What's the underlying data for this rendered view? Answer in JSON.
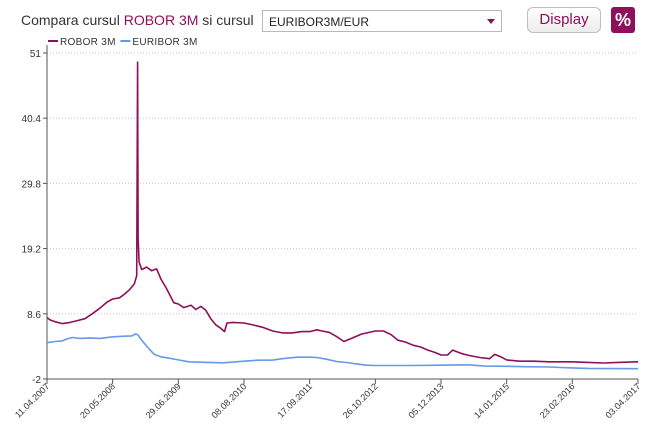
{
  "header": {
    "title_part1": "Compara cursul",
    "title_accent": "ROBOR 3M",
    "title_part2": "si cursul",
    "select_value": "EURIBOR3M/EUR",
    "display_label": "Display",
    "percent_label": "%"
  },
  "colors": {
    "robor": "#8e0f5a",
    "euribor": "#6699e8",
    "accent": "#8e0f5a"
  },
  "chart_data": {
    "type": "line",
    "title": "",
    "ylim": [
      -2,
      51
    ],
    "y_ticks": [
      -2,
      8.6,
      19.2,
      29.8,
      40.4,
      51
    ],
    "y_tick_labels": [
      "-2",
      "8.6",
      "19.2",
      "29.8",
      "40.4",
      "51"
    ],
    "x_ticks": [
      "11.04.2007",
      "20.05.2008",
      "29.06.2009",
      "08.08.2010",
      "17.09.2011",
      "26.10.2012",
      "05.12.2013",
      "14.01.2015",
      "23.02.2016",
      "03.04.2017"
    ],
    "legend_position": "top-left",
    "series": [
      {
        "name": "ROBOR 3M",
        "color": "#8e0f5a",
        "points": [
          [
            "2007-04-11",
            8.0
          ],
          [
            "2007-05-01",
            7.6
          ],
          [
            "2007-06-01",
            7.3
          ],
          [
            "2007-07-15",
            7.0
          ],
          [
            "2007-09-01",
            7.2
          ],
          [
            "2007-10-15",
            7.5
          ],
          [
            "2007-12-01",
            7.8
          ],
          [
            "2008-01-15",
            8.6
          ],
          [
            "2008-03-01",
            9.5
          ],
          [
            "2008-04-15",
            10.5
          ],
          [
            "2008-05-20",
            11.0
          ],
          [
            "2008-07-01",
            11.2
          ],
          [
            "2008-08-01",
            11.8
          ],
          [
            "2008-09-01",
            12.5
          ],
          [
            "2008-10-01",
            13.5
          ],
          [
            "2008-10-15",
            14.8
          ],
          [
            "2008-10-21",
            49.5
          ],
          [
            "2008-10-24",
            21.0
          ],
          [
            "2008-10-30",
            17.0
          ],
          [
            "2008-11-15",
            15.8
          ],
          [
            "2008-12-15",
            16.2
          ],
          [
            "2009-01-15",
            15.6
          ],
          [
            "2009-02-15",
            15.9
          ],
          [
            "2009-03-15",
            14.2
          ],
          [
            "2009-04-15",
            12.8
          ],
          [
            "2009-05-15",
            11.3
          ],
          [
            "2009-06-01",
            10.4
          ],
          [
            "2009-06-29",
            10.2
          ],
          [
            "2009-08-01",
            9.6
          ],
          [
            "2009-09-15",
            10.0
          ],
          [
            "2009-10-15",
            9.3
          ],
          [
            "2009-11-15",
            9.8
          ],
          [
            "2009-12-15",
            9.2
          ],
          [
            "2010-01-15",
            7.8
          ],
          [
            "2010-02-15",
            6.8
          ],
          [
            "2010-03-15",
            6.3
          ],
          [
            "2010-04-10",
            5.7
          ],
          [
            "2010-04-25",
            7.1
          ],
          [
            "2010-06-01",
            7.2
          ],
          [
            "2010-08-08",
            7.1
          ],
          [
            "2010-10-01",
            6.8
          ],
          [
            "2010-12-01",
            6.4
          ],
          [
            "2011-02-01",
            5.8
          ],
          [
            "2011-04-01",
            5.5
          ],
          [
            "2011-06-01",
            5.5
          ],
          [
            "2011-08-01",
            5.7
          ],
          [
            "2011-09-17",
            5.7
          ],
          [
            "2011-11-01",
            6.0
          ],
          [
            "2011-12-01",
            5.8
          ],
          [
            "2012-01-15",
            5.6
          ],
          [
            "2012-03-01",
            4.9
          ],
          [
            "2012-04-15",
            4.1
          ],
          [
            "2012-06-01",
            4.6
          ],
          [
            "2012-08-01",
            5.3
          ],
          [
            "2012-10-26",
            5.8
          ],
          [
            "2012-12-15",
            5.8
          ],
          [
            "2013-02-01",
            5.2
          ],
          [
            "2013-03-15",
            4.3
          ],
          [
            "2013-05-01",
            4.0
          ],
          [
            "2013-06-15",
            3.5
          ],
          [
            "2013-08-01",
            3.2
          ],
          [
            "2013-09-15",
            2.7
          ],
          [
            "2013-11-01",
            2.3
          ],
          [
            "2013-12-05",
            1.9
          ],
          [
            "2014-01-15",
            1.9
          ],
          [
            "2014-02-15",
            2.7
          ],
          [
            "2014-03-15",
            2.4
          ],
          [
            "2014-04-15",
            2.1
          ],
          [
            "2014-06-01",
            1.8
          ],
          [
            "2014-08-01",
            1.5
          ],
          [
            "2014-10-01",
            1.3
          ],
          [
            "2014-11-01",
            2.0
          ],
          [
            "2014-12-01",
            1.7
          ],
          [
            "2015-01-14",
            1.1
          ],
          [
            "2015-04-01",
            0.9
          ],
          [
            "2015-07-01",
            0.9
          ],
          [
            "2015-10-01",
            0.8
          ],
          [
            "2016-01-01",
            0.8
          ],
          [
            "2016-02-23",
            0.8
          ],
          [
            "2016-06-01",
            0.7
          ],
          [
            "2016-09-01",
            0.6
          ],
          [
            "2016-12-01",
            0.7
          ],
          [
            "2017-04-03",
            0.8
          ]
        ]
      },
      {
        "name": "EURIBOR 3M",
        "color": "#6699e8",
        "points": [
          [
            "2007-04-11",
            3.9
          ],
          [
            "2007-06-01",
            4.1
          ],
          [
            "2007-07-15",
            4.2
          ],
          [
            "2007-08-10",
            4.5
          ],
          [
            "2007-09-15",
            4.75
          ],
          [
            "2007-11-01",
            4.6
          ],
          [
            "2008-01-01",
            4.68
          ],
          [
            "2008-03-01",
            4.6
          ],
          [
            "2008-05-20",
            4.86
          ],
          [
            "2008-07-15",
            4.95
          ],
          [
            "2008-09-15",
            5.0
          ],
          [
            "2008-10-09",
            5.35
          ],
          [
            "2008-10-25",
            5.1
          ],
          [
            "2008-11-15",
            4.3
          ],
          [
            "2008-12-01",
            3.8
          ],
          [
            "2008-12-31",
            2.9
          ],
          [
            "2009-02-01",
            2.0
          ],
          [
            "2009-03-15",
            1.6
          ],
          [
            "2009-05-01",
            1.4
          ],
          [
            "2009-06-29",
            1.1
          ],
          [
            "2009-09-01",
            0.8
          ],
          [
            "2010-01-01",
            0.7
          ],
          [
            "2010-04-01",
            0.64
          ],
          [
            "2010-06-01",
            0.75
          ],
          [
            "2010-08-08",
            0.9
          ],
          [
            "2010-11-01",
            1.05
          ],
          [
            "2011-02-01",
            1.08
          ],
          [
            "2011-04-01",
            1.3
          ],
          [
            "2011-07-01",
            1.55
          ],
          [
            "2011-09-17",
            1.54
          ],
          [
            "2011-11-01",
            1.5
          ],
          [
            "2012-01-01",
            1.2
          ],
          [
            "2012-03-01",
            0.85
          ],
          [
            "2012-05-01",
            0.68
          ],
          [
            "2012-07-15",
            0.4
          ],
          [
            "2012-09-01",
            0.25
          ],
          [
            "2012-10-26",
            0.2
          ],
          [
            "2013-01-01",
            0.19
          ],
          [
            "2013-06-01",
            0.2
          ],
          [
            "2013-12-05",
            0.25
          ],
          [
            "2014-03-01",
            0.3
          ],
          [
            "2014-06-01",
            0.3
          ],
          [
            "2014-09-01",
            0.1
          ],
          [
            "2015-01-14",
            0.07
          ],
          [
            "2015-05-01",
            0.0
          ],
          [
            "2015-10-01",
            -0.05
          ],
          [
            "2016-02-23",
            -0.2
          ],
          [
            "2016-06-01",
            -0.28
          ],
          [
            "2016-11-01",
            -0.31
          ],
          [
            "2017-04-03",
            -0.33
          ]
        ]
      }
    ]
  }
}
